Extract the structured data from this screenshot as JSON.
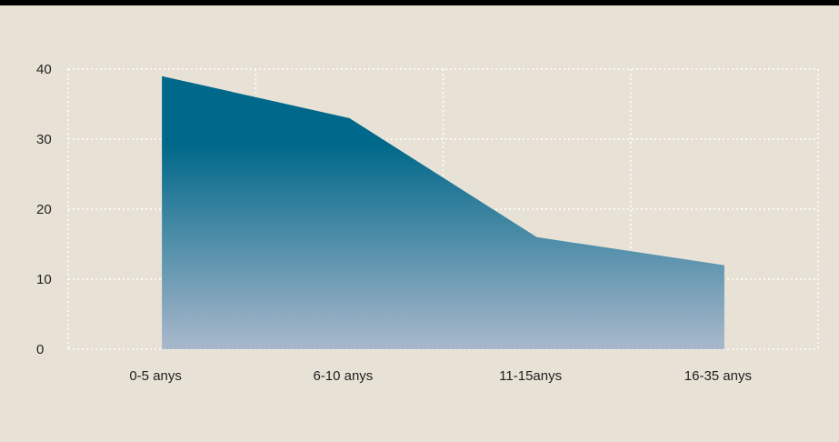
{
  "chart_data": {
    "type": "area",
    "categories": [
      "0-5 anys",
      "6-10 anys",
      "11-15anys",
      "16-35 anys"
    ],
    "values": [
      39,
      33,
      16,
      12
    ],
    "ylim": [
      0,
      40
    ],
    "yticks": [
      0,
      10,
      20,
      30,
      40
    ],
    "grid": true,
    "legend": "none",
    "colors": {
      "fill_top": "#00688a",
      "fill_bottom": "#a9b8cb",
      "grid": "#ffffff",
      "background": "#e8e2d6",
      "header_bar": "#000000"
    }
  }
}
